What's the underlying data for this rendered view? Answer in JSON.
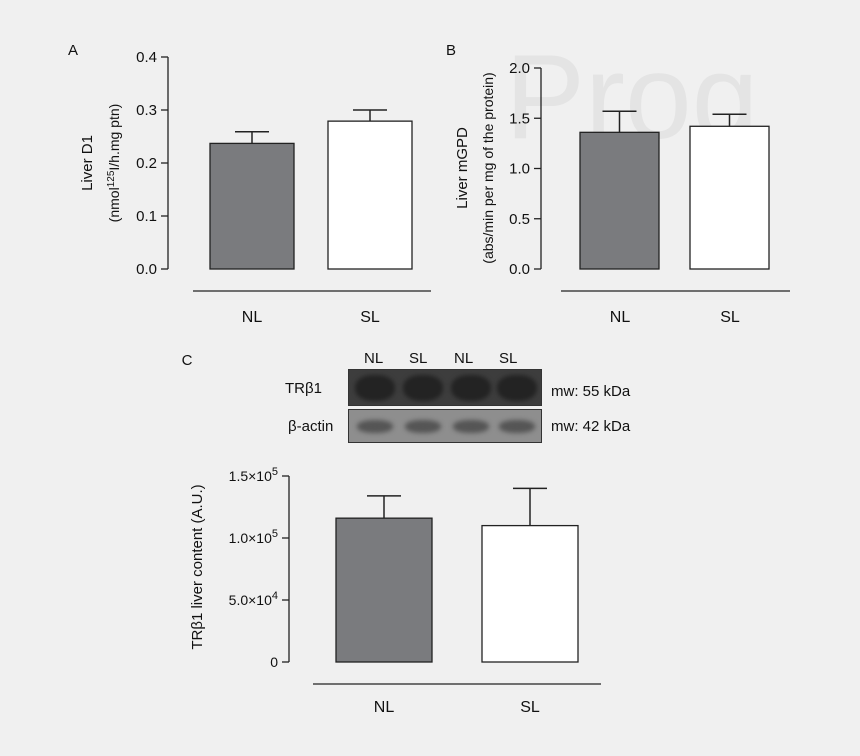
{
  "watermark": "Prog",
  "colors": {
    "nl_bar": "#7a7b7e",
    "sl_bar": "#ffffff",
    "axis": "#222222",
    "background": "#f0f0f0"
  },
  "chart_data": [
    {
      "panel": "A",
      "type": "bar",
      "categories": [
        "NL",
        "SL"
      ],
      "values": [
        0.237,
        0.279
      ],
      "errors": [
        0.022,
        0.021
      ],
      "ylabel_line1": "Liver D1",
      "ylabel_line2_pre": "(nmol",
      "ylabel_line2_sup": "125",
      "ylabel_line2_post": "I/h.mg ptn)",
      "ylim": [
        0,
        0.4
      ],
      "yticks": [
        0.0,
        0.1,
        0.2,
        0.3,
        0.4
      ],
      "ytick_labels": [
        "0.0",
        "0.1",
        "0.2",
        "0.3",
        "0.4"
      ],
      "grid": false
    },
    {
      "panel": "B",
      "type": "bar",
      "categories": [
        "NL",
        "SL"
      ],
      "values": [
        1.36,
        1.42
      ],
      "errors": [
        0.21,
        0.12
      ],
      "ylabel_line1": "Liver mGPD",
      "ylabel_line2": "(abs/min per mg of the protein)",
      "ylim": [
        0,
        2.0
      ],
      "yticks": [
        0.0,
        0.5,
        1.0,
        1.5,
        2.0
      ],
      "ytick_labels": [
        "0.0",
        "0.5",
        "1.0",
        "1.5",
        "2.0"
      ],
      "grid": false
    },
    {
      "panel": "C",
      "type": "bar",
      "categories": [
        "NL",
        "SL"
      ],
      "values": [
        116000,
        110000
      ],
      "errors": [
        18000,
        30000
      ],
      "ylabel": "TRβ1 liver content (A.U.)",
      "ylim": [
        0,
        150000
      ],
      "yticks": [
        0,
        50000,
        100000,
        150000
      ],
      "ytick_labels": [
        {
          "base": "0",
          "exp": ""
        },
        {
          "base": "5.0×10",
          "exp": "4"
        },
        {
          "base": "1.0×10",
          "exp": "5"
        },
        {
          "base": "1.5×10",
          "exp": "5"
        }
      ],
      "grid": false
    }
  ],
  "blot": {
    "lanes": [
      "NL",
      "SL",
      "NL",
      "SL"
    ],
    "rows": [
      {
        "label": "TRβ1",
        "mw": "mw: 55 kDa"
      },
      {
        "label": "β-actin",
        "mw": "mw: 42 kDa"
      }
    ]
  }
}
